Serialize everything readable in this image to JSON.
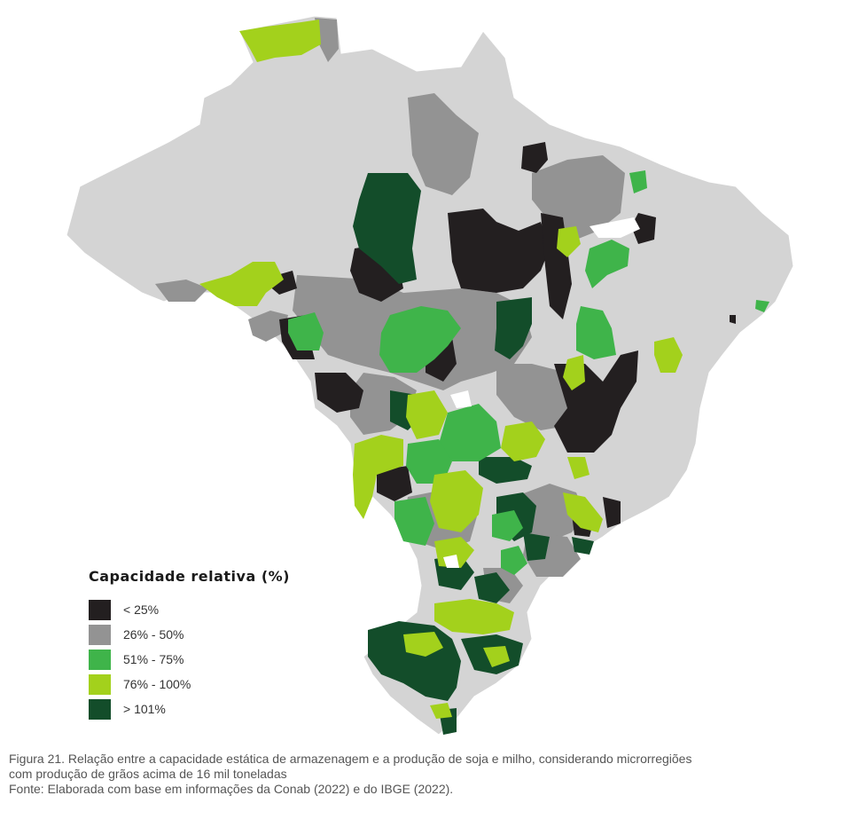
{
  "legend": {
    "title": "Capacidade relativa (%)",
    "items": [
      {
        "label": "< 25%",
        "color": "#231f20"
      },
      {
        "label": "26% - 50%",
        "color": "#939393"
      },
      {
        "label": "51% - 75%",
        "color": "#3fb44a"
      },
      {
        "label": "76% - 100%",
        "color": "#a3d11c"
      },
      {
        "label": "> 101%",
        "color": "#134d2a"
      }
    ]
  },
  "colors": {
    "no_data": "#d4d4d4",
    "border": "#ffffff",
    "white_area": "#ffffff"
  },
  "caption": {
    "line1": "Figura 21. Relação entre a capacidade estática de armazenagem e a produção de soja e milho, considerando microrregiões",
    "line2": "com produção de grãos acima de 16 mil toneladas",
    "source": "Fonte: Elaborada com base em informações da Conab (2022) e do IBGE (2022)."
  }
}
